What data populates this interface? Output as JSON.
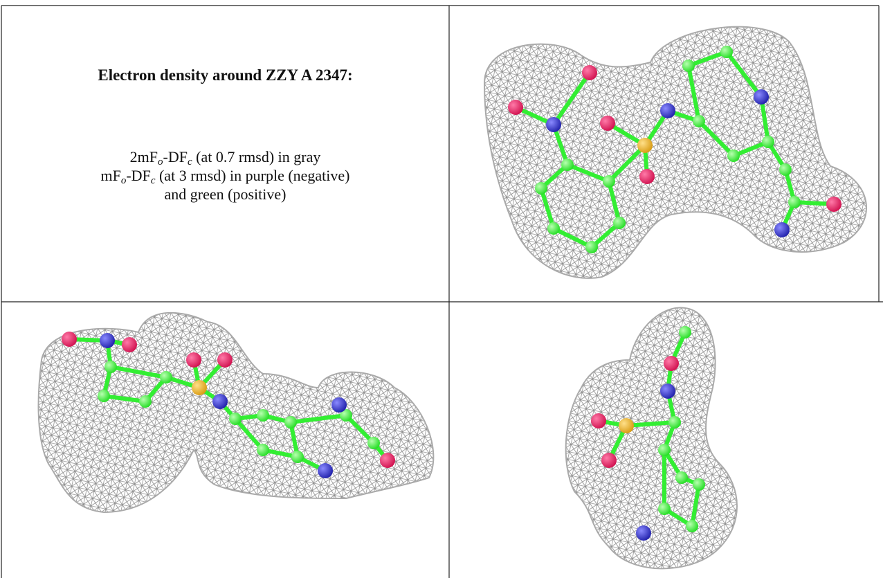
{
  "caption": {
    "title": "Electron density around ZZY A 2347:",
    "lines": [
      [
        {
          "text": "2mF"
        },
        {
          "sub": "o"
        },
        {
          "text": "-DF"
        },
        {
          "sub": "c"
        },
        {
          "text": " (at 0.7 rmsd) in gray"
        }
      ],
      [
        {
          "text": "mF"
        },
        {
          "sub": "o"
        },
        {
          "text": "-DF"
        },
        {
          "sub": "c"
        },
        {
          "text": " (at 3 rmsd) in purple (negative)"
        }
      ],
      [
        {
          "text": "and green (positive)"
        }
      ]
    ]
  }
}
